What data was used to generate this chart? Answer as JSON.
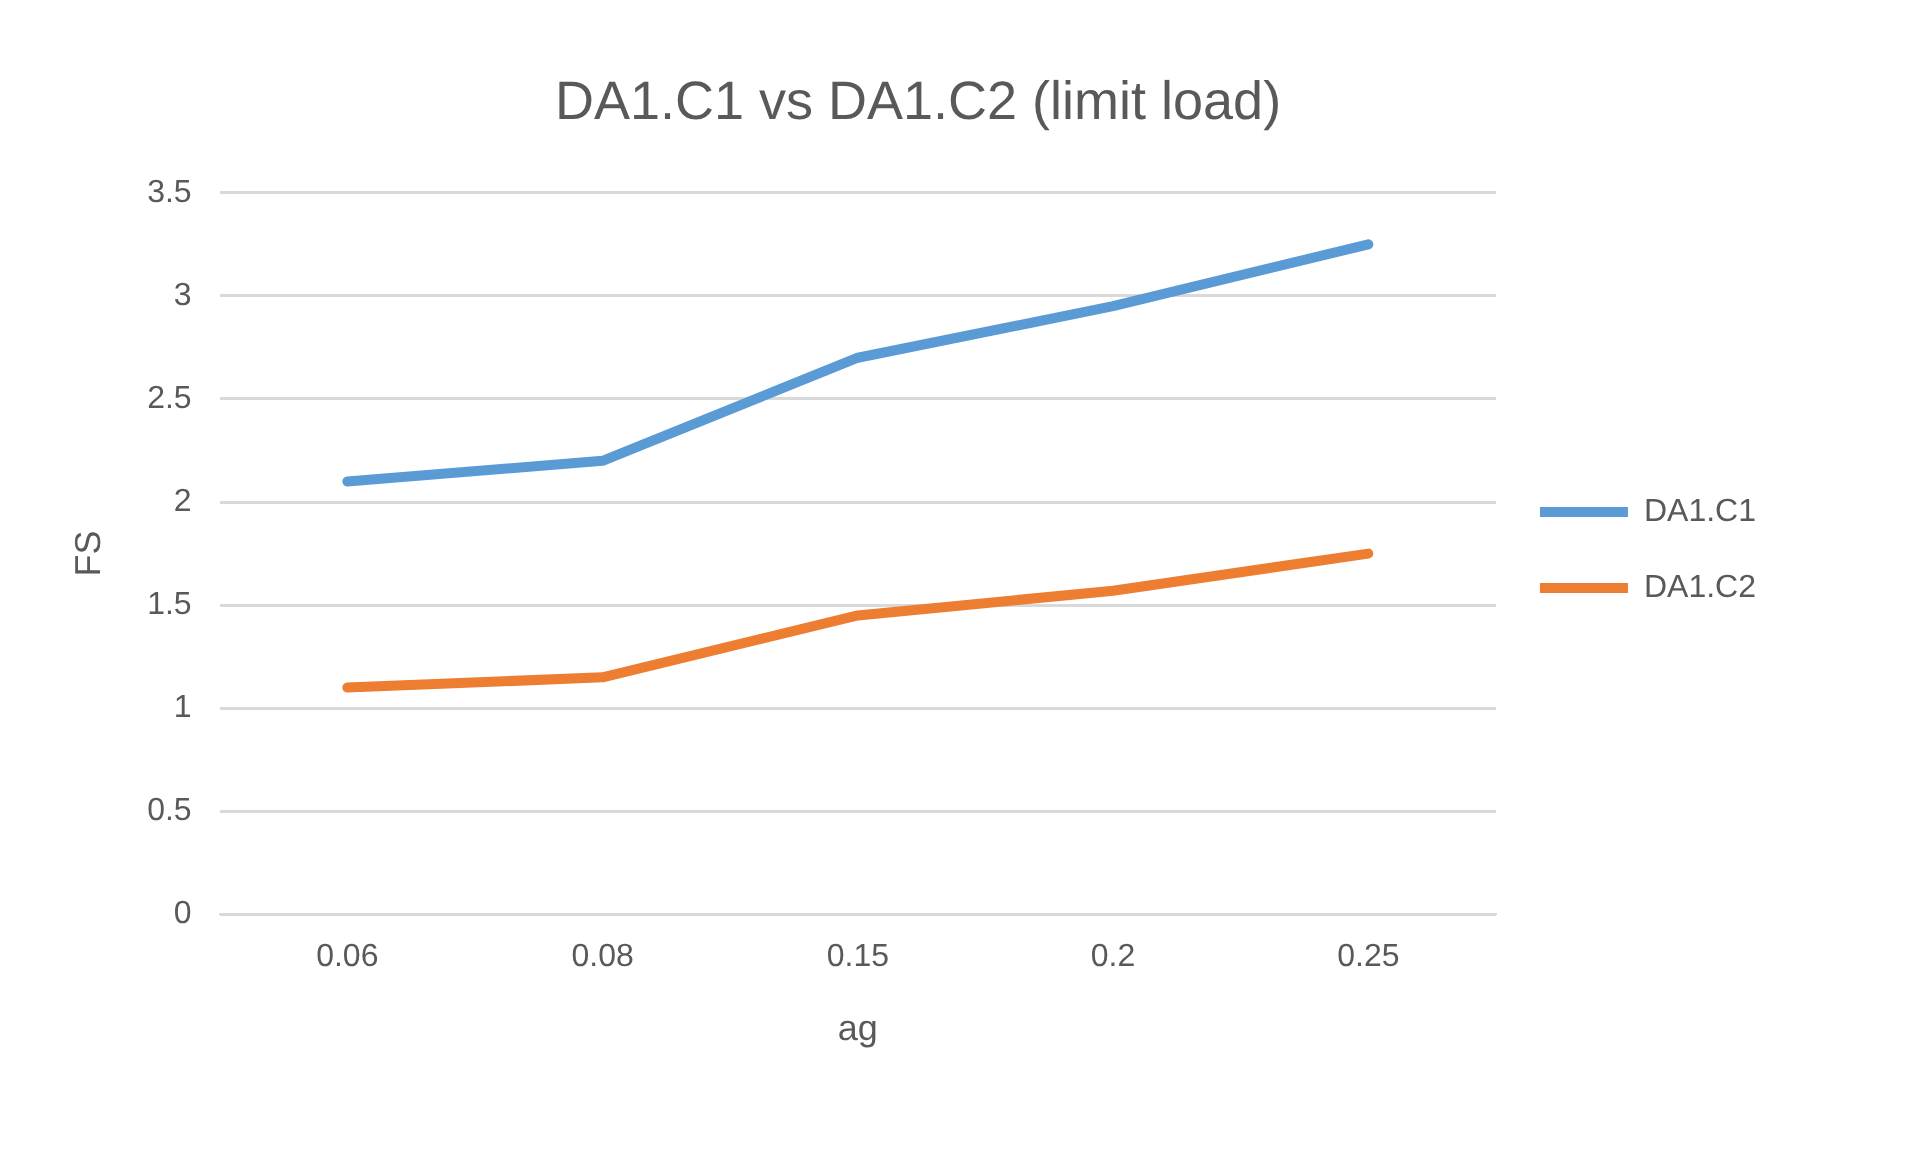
{
  "chart_data": {
    "type": "line",
    "title": "DA1.C1 vs DA1.C2 (limit load)",
    "xlabel": "ag",
    "ylabel": "FS",
    "categories": [
      "0.06",
      "0.08",
      "0.15",
      "0.2",
      "0.25"
    ],
    "series": [
      {
        "name": "DA1.C1",
        "color": "#5b9bd5",
        "values": [
          2.1,
          2.2,
          2.7,
          2.95,
          3.25
        ]
      },
      {
        "name": "DA1.C2",
        "color": "#ed7d31",
        "values": [
          1.1,
          1.15,
          1.45,
          1.57,
          1.75
        ]
      }
    ],
    "ylim": [
      0,
      3.5
    ],
    "yticks": [
      0,
      0.5,
      1,
      1.5,
      2,
      2.5,
      3,
      3.5
    ],
    "grid": "y",
    "legend": "right",
    "marker": "none",
    "line_style": "solid"
  }
}
